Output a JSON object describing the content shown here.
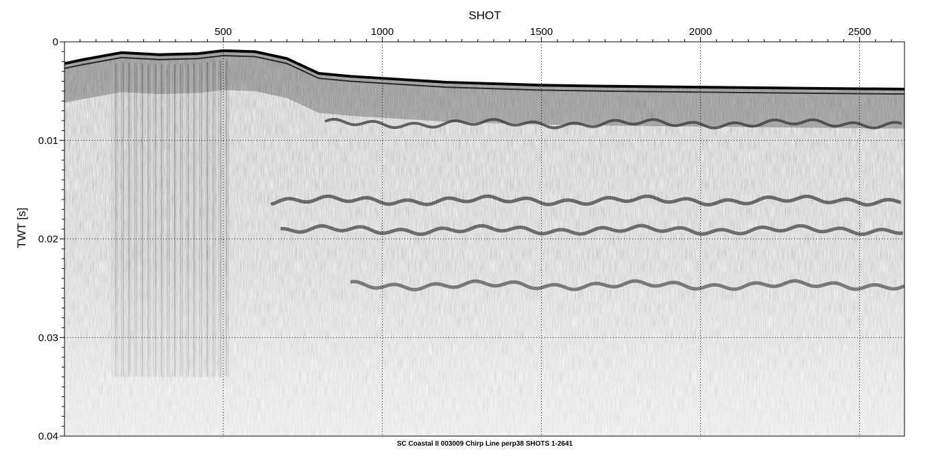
{
  "chart_data": {
    "type": "heatmap",
    "title": "",
    "xlabel": "SHOT",
    "ylabel": "TWT [s]",
    "caption": "SC Coastal II 003009 Chirp Line perp38 SHOTS 1-2641",
    "xlim": [
      1,
      2641
    ],
    "ylim": [
      0.04,
      0
    ],
    "x_ticks": [
      500,
      1000,
      1500,
      2000,
      2500
    ],
    "x_tick_labels": [
      "500",
      "1000",
      "1500",
      "2000",
      "2500"
    ],
    "y_ticks": [
      0,
      0.01,
      0.02,
      0.03,
      0.04
    ],
    "y_tick_labels": [
      "0",
      "0.01",
      "0.02",
      "0.03",
      "0.04"
    ],
    "grid": true,
    "colormap": [
      "#ffffff",
      "#000000"
    ],
    "seafloor_profile": {
      "shot": [
        1,
        60,
        180,
        300,
        420,
        500,
        600,
        700,
        800,
        900,
        1000,
        1200,
        1500,
        1700,
        2000,
        2300,
        2641
      ],
      "twt": [
        0.0022,
        0.0018,
        0.0011,
        0.0013,
        0.0012,
        0.0009,
        0.001,
        0.0017,
        0.0032,
        0.0035,
        0.0037,
        0.0041,
        0.0044,
        0.0045,
        0.0046,
        0.0047,
        0.0048
      ]
    },
    "reflectors": [
      {
        "shot_range": [
          820,
          2641
        ],
        "twt": 0.0083
      },
      {
        "shot_range": [
          650,
          2641
        ],
        "twt": 0.0161
      },
      {
        "shot_range": [
          680,
          2641
        ],
        "twt": 0.0191
      },
      {
        "shot_range": [
          900,
          2641
        ],
        "twt": 0.0247
      }
    ]
  }
}
